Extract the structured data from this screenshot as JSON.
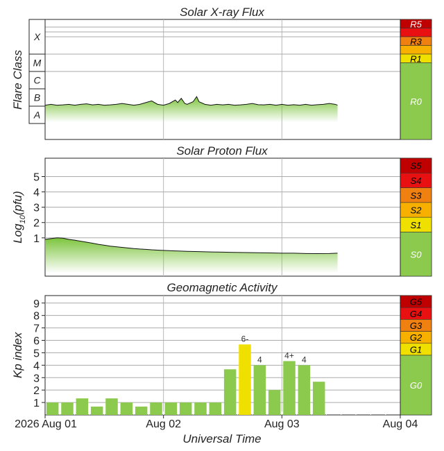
{
  "chart_data": [
    {
      "type": "line",
      "title": "Solar X-ray Flux",
      "ylabel": "Flare Class",
      "class_labels": [
        "X",
        "M",
        "C",
        "B",
        "A"
      ],
      "scale": [
        {
          "label": "R5",
          "color": "#c00000",
          "text": "#ffffff"
        },
        {
          "label": "",
          "color": "#e81010",
          "text": "#ffffff"
        },
        {
          "label": "R3",
          "color": "#f08010",
          "text": "#000000"
        },
        {
          "label": "",
          "color": "#f8b000",
          "text": "#000000"
        },
        {
          "label": "R1",
          "color": "#f0e000",
          "text": "#000000"
        },
        {
          "label": "R0",
          "color": "#8cca4e",
          "text": "#ffffff"
        }
      ],
      "x": [
        0,
        0.05,
        0.1,
        0.15,
        0.2,
        0.25,
        0.3,
        0.35,
        0.4,
        0.45,
        0.5,
        0.55,
        0.6,
        0.65,
        0.7,
        0.75,
        0.8,
        0.85,
        0.9,
        0.95,
        1.0,
        1.05,
        1.1,
        1.12,
        1.15,
        1.18,
        1.2,
        1.25,
        1.28,
        1.3,
        1.35,
        1.4,
        1.45,
        1.5,
        1.55,
        1.6,
        1.65,
        1.7,
        1.75,
        1.8,
        1.85,
        1.9,
        1.95,
        2.0,
        2.05,
        2.1,
        2.15,
        2.2,
        2.25,
        2.3,
        2.35,
        2.4,
        2.45,
        2.47
      ],
      "y": [
        2.0,
        2.05,
        2.0,
        2.02,
        2.05,
        2.0,
        2.05,
        2.08,
        2.02,
        2.05,
        2.0,
        2.02,
        2.05,
        2.1,
        2.05,
        2.0,
        2.05,
        2.15,
        2.25,
        2.05,
        2.0,
        2.1,
        2.3,
        2.15,
        2.4,
        2.1,
        2.05,
        2.2,
        2.5,
        2.2,
        2.05,
        2.0,
        2.05,
        2.02,
        2.05,
        2.0,
        2.02,
        2.05,
        2.1,
        2.03,
        2.02,
        2.05,
        2.0,
        2.05,
        2.0,
        2.03,
        2.0,
        2.05,
        2.0,
        2.03,
        2.05,
        2.1,
        2.05,
        2.0
      ],
      "ylim": [
        0,
        7
      ]
    },
    {
      "type": "line",
      "title": "Solar Proton Flux",
      "ylabel": "Log10(pfu)",
      "ylabel_parts": [
        "Log",
        "10",
        "(pfu)"
      ],
      "yticks": [
        "1",
        "2",
        "3",
        "4",
        "5"
      ],
      "scale": [
        {
          "label": "S5",
          "color": "#c00000",
          "text": "#000000"
        },
        {
          "label": "S4",
          "color": "#e81010",
          "text": "#000000"
        },
        {
          "label": "S3",
          "color": "#f08010",
          "text": "#000000"
        },
        {
          "label": "S2",
          "color": "#f8b000",
          "text": "#000000"
        },
        {
          "label": "S1",
          "color": "#f0e000",
          "text": "#000000"
        },
        {
          "label": "S0",
          "color": "#8cca4e",
          "text": "#ffffff"
        }
      ],
      "x": [
        0,
        0.05,
        0.1,
        0.15,
        0.2,
        0.25,
        0.3,
        0.35,
        0.4,
        0.45,
        0.5,
        0.55,
        0.6,
        0.65,
        0.7,
        0.75,
        0.8,
        0.85,
        0.9,
        0.95,
        1.0,
        1.1,
        1.2,
        1.3,
        1.4,
        1.5,
        1.6,
        1.7,
        1.8,
        1.9,
        2.0,
        2.1,
        2.2,
        2.3,
        2.4,
        2.47
      ],
      "y": [
        0.9,
        0.95,
        1.0,
        0.98,
        0.9,
        0.85,
        0.78,
        0.72,
        0.65,
        0.58,
        0.52,
        0.46,
        0.42,
        0.38,
        0.34,
        0.3,
        0.27,
        0.25,
        0.22,
        0.2,
        0.18,
        0.15,
        0.12,
        0.1,
        0.08,
        0.07,
        0.05,
        0.04,
        0.03,
        0.02,
        0.0,
        0.0,
        -0.02,
        -0.03,
        -0.02,
        0.0
      ],
      "ylim": [
        -1.5,
        6.2
      ]
    },
    {
      "type": "bar",
      "title": "Geomagnetic Activity",
      "ylabel": "Kp index",
      "xlabel": "Universal Time",
      "yticks": [
        "1",
        "2",
        "3",
        "4",
        "5",
        "6",
        "7",
        "8",
        "9"
      ],
      "scale": [
        {
          "label": "G5",
          "color": "#c00000",
          "text": "#000000"
        },
        {
          "label": "G4",
          "color": "#e81010",
          "text": "#000000"
        },
        {
          "label": "G3",
          "color": "#f08010",
          "text": "#000000"
        },
        {
          "label": "G2",
          "color": "#f8b000",
          "text": "#000000"
        },
        {
          "label": "G1",
          "color": "#f0e000",
          "text": "#000000"
        },
        {
          "label": "G0",
          "color": "#8cca4e",
          "text": "#ffffff"
        }
      ],
      "values": [
        1.0,
        1.0,
        1.33,
        0.67,
        1.33,
        1.0,
        0.67,
        1.0,
        1.0,
        1.0,
        1.0,
        1.0,
        3.67,
        5.67,
        4.0,
        2.0,
        4.33,
        4.0,
        2.67
      ],
      "bar_labels": [
        "",
        "",
        "",
        "",
        "",
        "",
        "",
        "",
        "",
        "",
        "",
        "",
        "",
        "6-",
        "4",
        "",
        "4+",
        "4",
        ""
      ],
      "bar_colors": [
        "#8cca4e",
        "#8cca4e",
        "#8cca4e",
        "#8cca4e",
        "#8cca4e",
        "#8cca4e",
        "#8cca4e",
        "#8cca4e",
        "#8cca4e",
        "#8cca4e",
        "#8cca4e",
        "#8cca4e",
        "#8cca4e",
        "#f0e000",
        "#8cca4e",
        "#8cca4e",
        "#8cca4e",
        "#8cca4e",
        "#8cca4e"
      ],
      "bar_hours": 3,
      "ylim": [
        0,
        9.6
      ],
      "x_tick_labels": [
        "2026 Aug 01",
        "Aug 02",
        "Aug 03",
        "Aug 04"
      ]
    }
  ]
}
